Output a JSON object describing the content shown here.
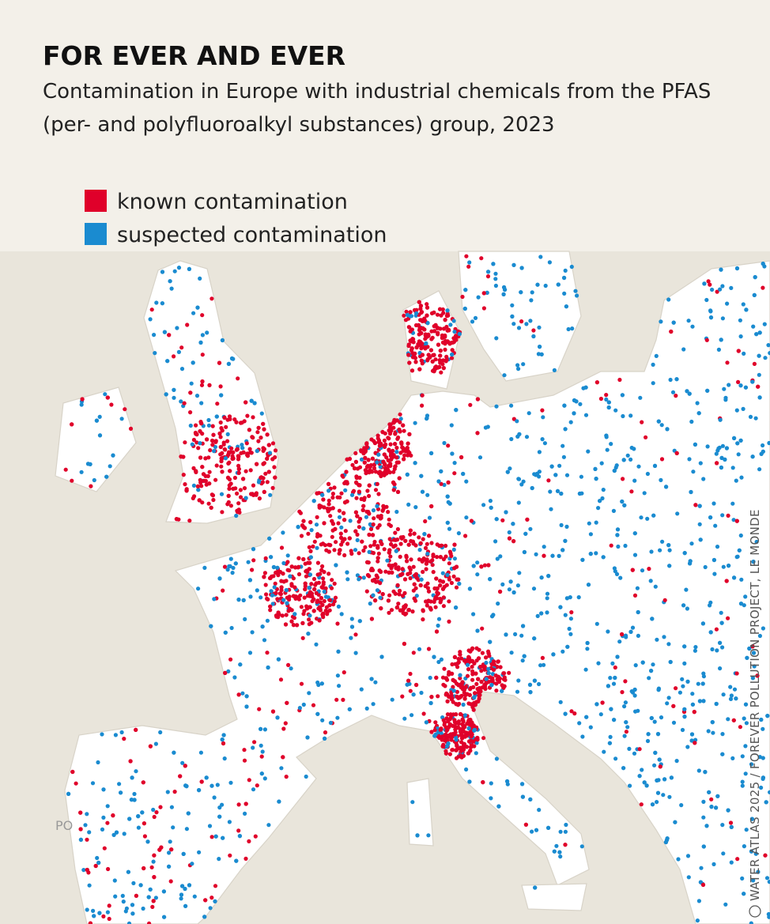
{
  "header": {
    "title": "FOR EVER AND EVER",
    "subtitle_lines": [
      "Contamination in Europe with industrial chemicals from the PFAS",
      "(per- and polyfluoroalkyl substances) group, 2023"
    ]
  },
  "legend": {
    "items": [
      {
        "label": "known contamination",
        "color": "#e0002a"
      },
      {
        "label": "suspected contamination",
        "color": "#1a8bd0"
      }
    ]
  },
  "map": {
    "labels": [
      "PO"
    ]
  },
  "credit": "WATER ATLAS 2025 / FOREVER POLLUTION PROJECT, LE MONDE"
}
